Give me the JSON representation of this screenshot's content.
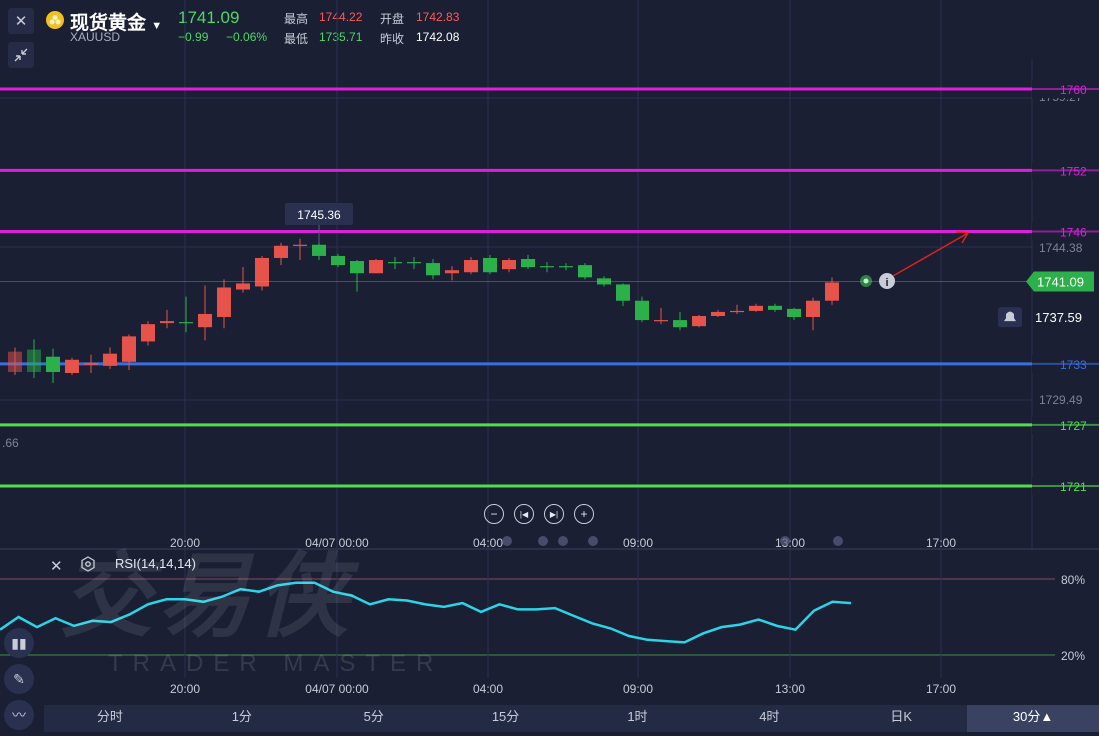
{
  "header": {
    "close_icon": "close-icon",
    "collapse_icon": "collapse-icon",
    "title": "现货黄金",
    "symbol": "XAUUSD",
    "price": "1741.09",
    "change": "−0.99",
    "change_pct": "−0.06%",
    "stats": [
      {
        "label": "最高",
        "value": "1744.22",
        "color": "#ff5a5a"
      },
      {
        "label": "开盘",
        "value": "1742.83",
        "color": "#ff5a5a"
      },
      {
        "label": "最低",
        "value": "1735.71",
        "color": "#4cd964"
      },
      {
        "label": "昨收",
        "value": "1742.08",
        "color": "#ffffff"
      }
    ]
  },
  "colors": {
    "up": "#e5534b",
    "down": "#2bb04a",
    "magenta": "#e01ee0",
    "blue": "#3b6fe0",
    "green": "#4ee04a",
    "rsi": "#2bd4e6"
  },
  "watermark": {
    "cn": "交易侠",
    "en": "TRADER MASTER"
  },
  "nav": [
    "zoom-out",
    "step-back",
    "step-forward",
    "zoom-in"
  ],
  "chart_data": [
    {
      "type": "candlestick",
      "title": "",
      "x_ticks": [
        "20:00",
        "04/07 00:00",
        "04:00",
        "09:00",
        "13:00",
        "17:00"
      ],
      "y_tick_labels": [
        "1759.27",
        "1744.38",
        "1729.49",
        ".66"
      ],
      "price_tag": "1741.09",
      "alert_tag": "1737.59",
      "high_annotation": "1745.36",
      "levels": [
        {
          "value": 1760,
          "label": "1760",
          "color": "#e01ee0"
        },
        {
          "value": 1752,
          "label": "1752",
          "color": "#e01ee0"
        },
        {
          "value": 1746,
          "label": "1746",
          "color": "#e01ee0"
        },
        {
          "value": 1733,
          "label": "1733",
          "color": "#3b6fe0"
        },
        {
          "value": 1727,
          "label": "1727",
          "color": "#4ee04a"
        },
        {
          "value": 1721,
          "label": "1721",
          "color": "#4ee04a"
        }
      ],
      "candles": [
        {
          "o": 1732.2,
          "c": 1734.2,
          "h": 1734.6,
          "l": 1731.9
        },
        {
          "o": 1734.4,
          "c": 1732.2,
          "h": 1735.4,
          "l": 1731.6
        },
        {
          "o": 1733.7,
          "c": 1732.2,
          "h": 1734.5,
          "l": 1731.1
        },
        {
          "o": 1732.1,
          "c": 1733.4,
          "h": 1733.6,
          "l": 1731.9
        },
        {
          "o": 1732.9,
          "c": 1733.1,
          "h": 1733.9,
          "l": 1732.1
        },
        {
          "o": 1732.8,
          "c": 1734.0,
          "h": 1734.6,
          "l": 1732.5
        },
        {
          "o": 1733.2,
          "c": 1735.7,
          "h": 1735.9,
          "l": 1732.4
        },
        {
          "o": 1735.2,
          "c": 1736.9,
          "h": 1737.2,
          "l": 1734.8
        },
        {
          "o": 1737.0,
          "c": 1737.2,
          "h": 1738.3,
          "l": 1736.5
        },
        {
          "o": 1737.1,
          "c": 1737.0,
          "h": 1739.6,
          "l": 1736.1
        },
        {
          "o": 1736.6,
          "c": 1737.9,
          "h": 1740.7,
          "l": 1735.3
        },
        {
          "o": 1737.6,
          "c": 1740.5,
          "h": 1741.3,
          "l": 1736.5
        },
        {
          "o": 1740.3,
          "c": 1740.9,
          "h": 1742.5,
          "l": 1740.0
        },
        {
          "o": 1740.6,
          "c": 1743.4,
          "h": 1743.6,
          "l": 1740.2
        },
        {
          "o": 1743.4,
          "c": 1744.6,
          "h": 1744.9,
          "l": 1742.7
        },
        {
          "o": 1744.6,
          "c": 1744.7,
          "h": 1745.3,
          "l": 1743.2
        },
        {
          "o": 1744.7,
          "c": 1743.6,
          "h": 1744.9,
          "l": 1743.2
        },
        {
          "o": 1743.6,
          "c": 1742.7,
          "h": 1743.8,
          "l": 1742.5
        },
        {
          "o": 1743.1,
          "c": 1741.9,
          "h": 1743.2,
          "l": 1740.1
        },
        {
          "o": 1741.9,
          "c": 1743.2,
          "h": 1743.3,
          "l": 1741.9
        },
        {
          "o": 1743.0,
          "c": 1742.9,
          "h": 1743.5,
          "l": 1742.3
        },
        {
          "o": 1743.0,
          "c": 1742.9,
          "h": 1743.5,
          "l": 1742.3
        },
        {
          "o": 1742.9,
          "c": 1741.7,
          "h": 1743.3,
          "l": 1741.3
        },
        {
          "o": 1741.9,
          "c": 1742.2,
          "h": 1742.6,
          "l": 1741.2
        },
        {
          "o": 1742.0,
          "c": 1743.2,
          "h": 1743.5,
          "l": 1741.8
        },
        {
          "o": 1743.4,
          "c": 1742.0,
          "h": 1743.7,
          "l": 1741.8
        },
        {
          "o": 1742.3,
          "c": 1743.2,
          "h": 1743.4,
          "l": 1742.0
        },
        {
          "o": 1743.3,
          "c": 1742.5,
          "h": 1743.7,
          "l": 1742.3
        },
        {
          "o": 1742.6,
          "c": 1742.5,
          "h": 1743.0,
          "l": 1742.0
        },
        {
          "o": 1742.6,
          "c": 1742.5,
          "h": 1742.9,
          "l": 1742.2
        },
        {
          "o": 1742.7,
          "c": 1741.5,
          "h": 1742.9,
          "l": 1741.3
        },
        {
          "o": 1741.4,
          "c": 1740.8,
          "h": 1741.6,
          "l": 1740.6
        },
        {
          "o": 1740.8,
          "c": 1739.2,
          "h": 1740.9,
          "l": 1738.7
        },
        {
          "o": 1739.2,
          "c": 1737.3,
          "h": 1739.6,
          "l": 1737.1
        },
        {
          "o": 1737.3,
          "c": 1737.3,
          "h": 1738.5,
          "l": 1736.9
        },
        {
          "o": 1737.3,
          "c": 1736.6,
          "h": 1738.1,
          "l": 1736.3
        },
        {
          "o": 1736.7,
          "c": 1737.7,
          "h": 1737.8,
          "l": 1736.6
        },
        {
          "o": 1737.7,
          "c": 1738.1,
          "h": 1738.3,
          "l": 1737.6
        },
        {
          "o": 1738.1,
          "c": 1738.2,
          "h": 1738.8,
          "l": 1737.9
        },
        {
          "o": 1738.2,
          "c": 1738.7,
          "h": 1738.9,
          "l": 1738.1
        },
        {
          "o": 1738.7,
          "c": 1738.3,
          "h": 1738.9,
          "l": 1738.1
        },
        {
          "o": 1738.4,
          "c": 1737.6,
          "h": 1738.5,
          "l": 1737.3
        },
        {
          "o": 1737.6,
          "c": 1739.2,
          "h": 1739.5,
          "l": 1736.3
        },
        {
          "o": 1739.2,
          "c": 1741.0,
          "h": 1741.5,
          "l": 1738.8
        }
      ]
    },
    {
      "type": "line",
      "title": "RSI(14,14,14)",
      "y_ticks": [
        "80%",
        "20%"
      ],
      "x_ticks": [
        "20:00",
        "04/07 00:00",
        "04:00",
        "09:00",
        "13:00",
        "17:00"
      ],
      "series": [
        {
          "values": [
            40,
            50,
            42,
            49,
            43,
            47,
            46,
            52,
            60,
            64,
            64,
            62,
            66,
            72,
            70,
            75,
            77,
            77,
            70,
            67,
            60,
            64,
            63,
            60,
            58,
            61,
            54,
            60,
            56,
            56,
            57,
            51,
            45,
            41,
            35,
            32,
            31,
            30,
            37,
            42,
            44,
            48,
            43,
            40,
            55,
            62,
            61
          ]
        }
      ]
    }
  ],
  "toolbar": {
    "periods": [
      "分时",
      "1分",
      "5分",
      "15分",
      "1时",
      "4时",
      "日K",
      "30分▲"
    ]
  }
}
